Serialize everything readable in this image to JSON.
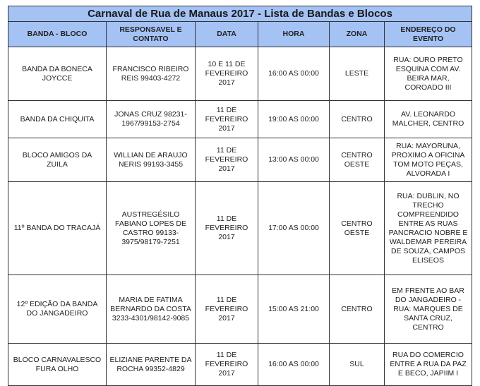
{
  "title": "Carnaval de Rua de Manaus 2017 - Lista de Bandas e Blocos",
  "headers": [
    "BANDA - BLOCO",
    "RESPONSAVEL E CONTATO",
    "DATA",
    "HORA",
    "ZONA",
    "ENDEREÇO DO EVENTO"
  ],
  "header_color": "#a4c2f4",
  "rows": [
    [
      "BANDA DA BONECA JOYCCE",
      "FRANCISCO RIBEIRO REIS 99403-4272",
      "10 E 11 DE FEVEREIRO 2017",
      "16:00 AS 00:00",
      "LESTE",
      "RUA: OURO PRETO ESQUINA COM AV. BEIRA MAR, COROADO III"
    ],
    [
      "BANDA DA CHIQUITA",
      "JONAS CRUZ 98231-1967/99153-2754",
      "11 DE FEVEREIRO 2017",
      "19:00 AS 00:00",
      "CENTRO",
      "AV. LEONARDO MALCHER, CENTRO"
    ],
    [
      "BLOCO AMIGOS DA ZUILA",
      "WILLIAN DE ARAUJO NERIS 99193-3455",
      "11 DE FEVEREIRO 2017",
      "13:00 AS 00:00",
      "CENTRO OESTE",
      "RUA: MAYORUNA, PROXIMO A OFICINA TOM MOTO PEÇAS, ALVORADA I"
    ],
    [
      "11º BANDA DO TRACAJÁ",
      "AUSTREGÉSILO FABIANO LOPES DE CASTRO 99133-3975/98179-7251",
      "11 DE FEVEREIRO 2017",
      "17:00 AS 00:00",
      "CENTRO OESTE",
      "RUA: DUBLIN, NO TRECHO COMPREENDIDO ENTRE AS RUAS PANCRACIO NOBRE E WALDEMAR PEREIRA DE SOUZA, CAMPOS ELISEOS"
    ],
    [
      "12º EDIÇÃO DA BANDA DO JANGADEIRO",
      "MARIA DE FATIMA BERNARDO DA COSTA 3233-4301/98142-9085",
      "11 DE FEVEREIRO 2017",
      "15:00 AS 21:00",
      "CENTRO",
      "EM FRENTE AO BAR DO JANGADEIRO - RUA: MARQUES DE SANTA CRUZ, CENTRO"
    ],
    [
      "BLOCO CARNAVALESCO FURA OLHO",
      "ELIZIANE PARENTE DA ROCHA 99352-4829",
      "11 DE FEVEREIRO 2017",
      "16:00 AS 00:00",
      "SUL",
      "RUA DO COMERCIO ENTRE A RUA DA PAZ E BECO, JAPIIM I"
    ]
  ]
}
